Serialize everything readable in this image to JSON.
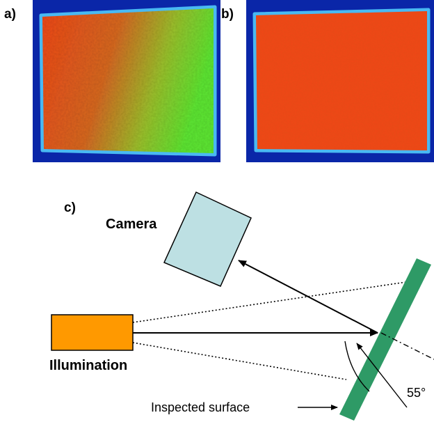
{
  "panels": {
    "a_label": "a)",
    "b_label": "b)",
    "c_label": "c)"
  },
  "diagram": {
    "camera_label": "Camera",
    "illumination_label": "Illumination",
    "surface_label": "Inspected surface",
    "angle_label": "55°"
  },
  "colors": {
    "background_blue": "#0a26a8",
    "edge_cyan": "#55d4ff",
    "field_red": "#f24a1c",
    "field_green": "#5fe834",
    "camera_fill": "#bde0e3",
    "illumination_fill": "#ff9900",
    "surface_green": "#2e9a66"
  }
}
